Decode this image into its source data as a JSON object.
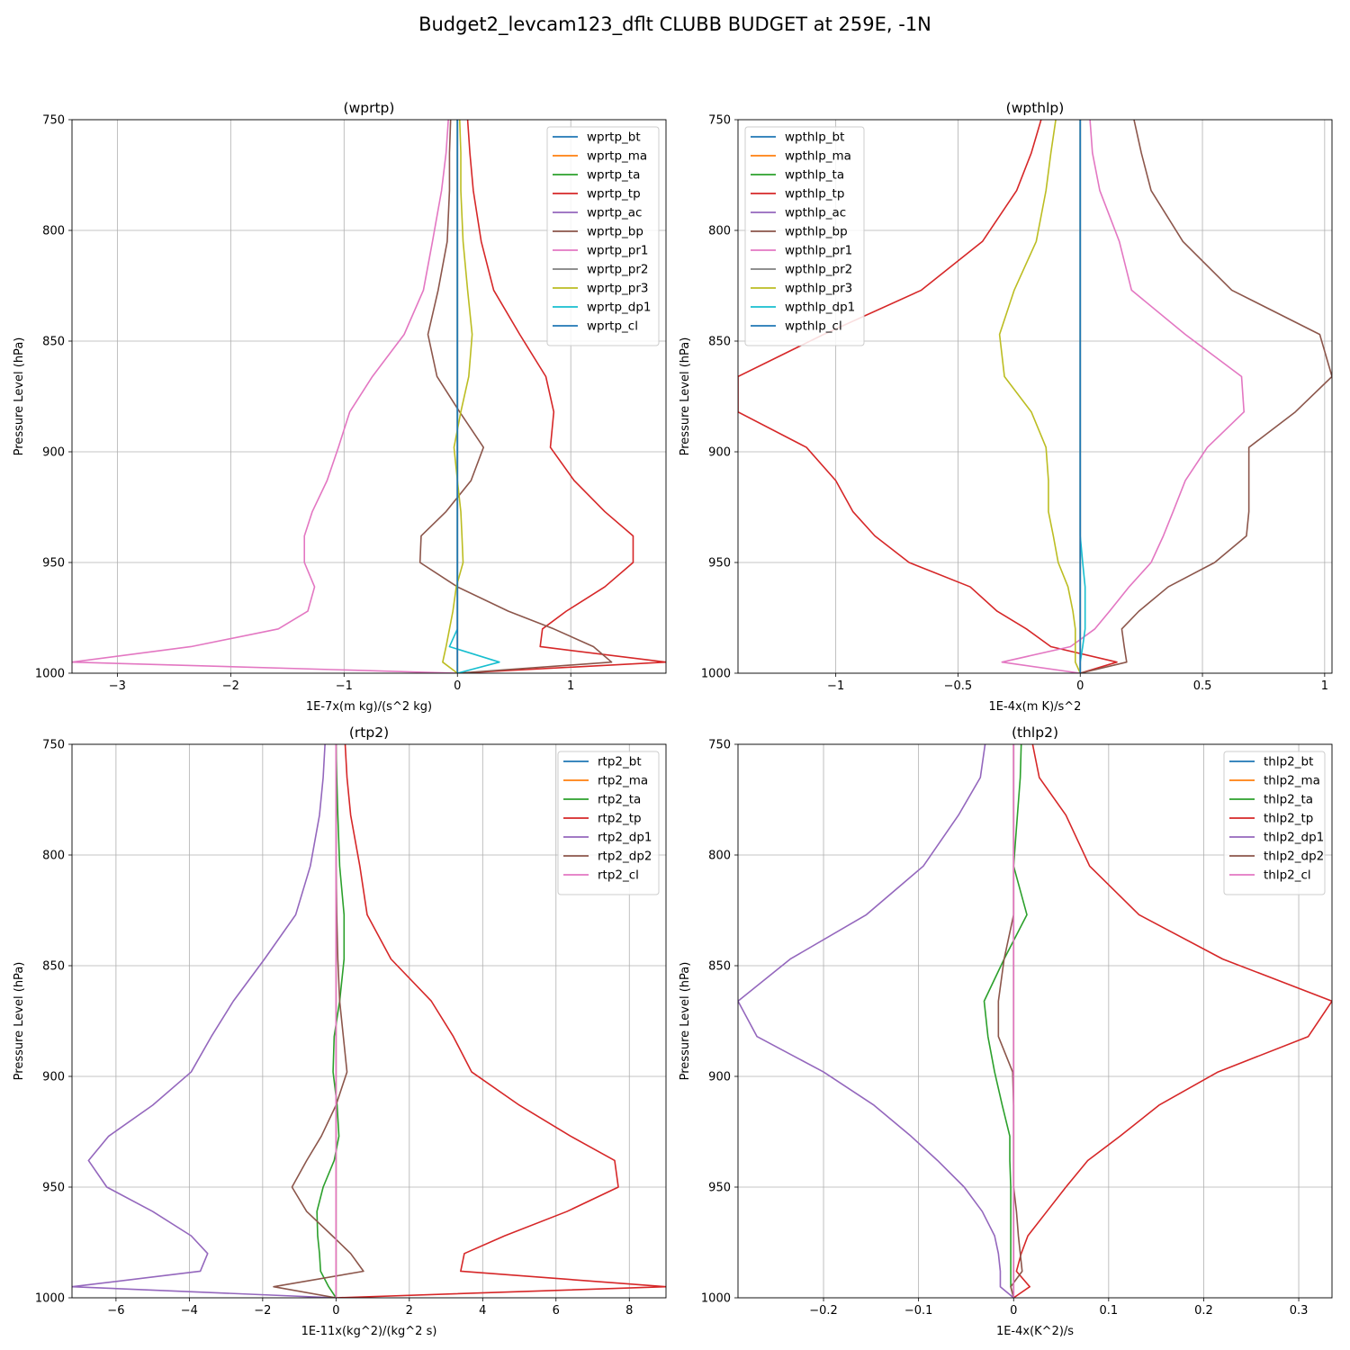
{
  "suptitle": "Budget2_levcam123_dflt CLUBB BUDGET at 259E, -1N",
  "colors": [
    "#1f77b4",
    "#ff7f0e",
    "#2ca02c",
    "#d62728",
    "#9467bd",
    "#8c564b",
    "#e377c2",
    "#7f7f7f",
    "#bcbd22",
    "#17becf",
    "#1f77b4"
  ],
  "chart_data": [
    {
      "type": "line",
      "title": "(wprtp)",
      "xlabel": "1E-7x(m kg)/(s^2 kg)",
      "ylabel": "Pressure Level (hPa)",
      "xlim": [
        -3.4,
        1.84
      ],
      "ylim": [
        1000,
        750
      ],
      "xticks": [
        -3,
        -2,
        -1,
        0,
        1
      ],
      "yticks": [
        750,
        800,
        850,
        900,
        950,
        1000
      ],
      "grid": true,
      "legend": "top-right",
      "y": [
        750,
        765,
        782,
        805,
        827,
        847,
        866,
        882,
        898,
        913,
        927,
        938,
        950,
        961,
        972,
        980,
        988,
        995,
        1000
      ],
      "series": [
        {
          "name": "wprtp_bt",
          "values": [
            0,
            0,
            0,
            0,
            0,
            0,
            0,
            0,
            0,
            0,
            0,
            0,
            0,
            0,
            0,
            0,
            0,
            0,
            0
          ]
        },
        {
          "name": "wprtp_ma",
          "values": [
            0,
            0,
            0,
            0,
            0,
            0,
            0,
            0,
            0,
            0,
            0,
            0,
            0,
            0,
            0,
            0,
            0,
            0,
            0
          ]
        },
        {
          "name": "wprtp_ta",
          "values": [
            0,
            0,
            0,
            0,
            0,
            0,
            0,
            0,
            0,
            0,
            0,
            0,
            0,
            0,
            0,
            0,
            0,
            0,
            0
          ]
        },
        {
          "name": "wprtp_tp",
          "values": [
            0.09,
            0.11,
            0.14,
            0.21,
            0.32,
            0.55,
            0.78,
            0.85,
            0.82,
            1.03,
            1.3,
            1.55,
            1.55,
            1.3,
            0.96,
            0.75,
            0.73,
            1.84,
            0
          ]
        },
        {
          "name": "wprtp_ac",
          "values": [
            0,
            0,
            0,
            0,
            0,
            0,
            0,
            0,
            0,
            0,
            0,
            0,
            0,
            0,
            0,
            0,
            0,
            0,
            0
          ]
        },
        {
          "name": "wprtp_bp",
          "values": [
            -0.06,
            -0.07,
            -0.07,
            -0.09,
            -0.17,
            -0.26,
            -0.18,
            0.02,
            0.23,
            0.12,
            -0.1,
            -0.32,
            -0.33,
            0,
            0.45,
            0.85,
            1.2,
            1.36,
            0
          ]
        },
        {
          "name": "wprtp_pr1",
          "values": [
            -0.08,
            -0.1,
            -0.14,
            -0.22,
            -0.3,
            -0.47,
            -0.75,
            -0.95,
            -1.05,
            -1.15,
            -1.28,
            -1.35,
            -1.35,
            -1.26,
            -1.32,
            -1.58,
            -2.35,
            -3.4,
            0
          ]
        },
        {
          "name": "wprtp_pr2",
          "values": [
            0,
            0,
            0,
            0,
            0,
            0,
            0,
            0,
            0,
            0,
            0,
            0,
            0,
            0,
            0,
            0,
            0,
            0,
            0
          ]
        },
        {
          "name": "wprtp_pr3",
          "values": [
            0.02,
            0.03,
            0.03,
            0.05,
            0.09,
            0.13,
            0.1,
            0.03,
            -0.03,
            0,
            0.03,
            0.04,
            0.05,
            -0.01,
            -0.04,
            -0.07,
            -0.1,
            -0.13,
            0
          ]
        },
        {
          "name": "wprtp_dp1",
          "values": [
            0,
            0,
            0,
            0,
            0,
            0,
            0,
            0,
            0,
            0,
            0,
            0,
            0,
            0,
            0,
            0,
            -0.07,
            0.37,
            0
          ]
        },
        {
          "name": "wprtp_cl",
          "values": [
            0,
            0,
            0,
            0,
            0,
            0,
            0,
            0,
            0,
            0,
            0,
            0,
            0,
            0,
            0,
            0,
            0,
            0,
            0
          ]
        }
      ]
    },
    {
      "type": "line",
      "title": "(wpthlp)",
      "xlabel": "1E-4x(m K)/s^2",
      "ylabel": "Pressure Level (hPa)",
      "xlim": [
        -1.4,
        1.03
      ],
      "ylim": [
        1000,
        750
      ],
      "xticks": [
        -1.0,
        -0.5,
        0.0,
        0.5,
        1.0
      ],
      "yticks": [
        750,
        800,
        850,
        900,
        950,
        1000
      ],
      "grid": true,
      "legend": "top-left",
      "y": [
        750,
        765,
        782,
        805,
        827,
        847,
        866,
        882,
        898,
        913,
        927,
        938,
        950,
        961,
        972,
        980,
        988,
        995,
        1000
      ],
      "series": [
        {
          "name": "wpthlp_bt",
          "values": [
            0,
            0,
            0,
            0,
            0,
            0,
            0,
            0,
            0,
            0,
            0,
            0,
            0,
            0,
            0,
            0,
            0,
            0,
            0
          ]
        },
        {
          "name": "wpthlp_ma",
          "values": [
            0,
            0,
            0,
            0,
            0,
            0,
            0,
            0,
            0,
            0,
            0,
            0,
            0,
            0,
            0,
            0,
            0,
            0,
            0
          ]
        },
        {
          "name": "wpthlp_ta",
          "values": [
            0,
            0,
            0,
            0,
            0,
            0,
            0,
            0,
            0,
            0,
            0,
            0,
            0,
            0,
            0,
            0,
            0,
            0,
            0
          ]
        },
        {
          "name": "wpthlp_tp",
          "values": [
            -0.16,
            -0.2,
            -0.26,
            -0.4,
            -0.65,
            -1.05,
            -1.4,
            -1.4,
            -1.12,
            -1.0,
            -0.93,
            -0.84,
            -0.7,
            -0.45,
            -0.34,
            -0.22,
            -0.12,
            0.15,
            0
          ]
        },
        {
          "name": "wpthlp_ac",
          "values": [
            0,
            0,
            0,
            0,
            0,
            0,
            0,
            0,
            0,
            0,
            0,
            0,
            0,
            0,
            0,
            0,
            0,
            0,
            0
          ]
        },
        {
          "name": "wpthlp_bp",
          "values": [
            0.22,
            0.25,
            0.29,
            0.42,
            0.62,
            0.98,
            1.03,
            0.88,
            0.69,
            0.69,
            0.69,
            0.68,
            0.55,
            0.36,
            0.24,
            0.17,
            0.18,
            0.19,
            0
          ]
        },
        {
          "name": "wpthlp_pr1",
          "values": [
            0.04,
            0.05,
            0.08,
            0.16,
            0.21,
            0.43,
            0.66,
            0.67,
            0.52,
            0.43,
            0.38,
            0.34,
            0.29,
            0.2,
            0.12,
            0.06,
            -0.04,
            -0.32,
            0
          ]
        },
        {
          "name": "wpthlp_pr2",
          "values": [
            0,
            0,
            0,
            0,
            0,
            0,
            0,
            0,
            0,
            0,
            0,
            0,
            0,
            0,
            0,
            0,
            0,
            0,
            0
          ]
        },
        {
          "name": "wpthlp_pr3",
          "values": [
            -0.1,
            -0.12,
            -0.14,
            -0.18,
            -0.27,
            -0.33,
            -0.31,
            -0.2,
            -0.14,
            -0.13,
            -0.13,
            -0.11,
            -0.09,
            -0.05,
            -0.03,
            -0.02,
            -0.02,
            -0.02,
            0
          ]
        },
        {
          "name": "wpthlp_dp1",
          "values": [
            0,
            0,
            0,
            0,
            0,
            0,
            0,
            0,
            0,
            0,
            0,
            0,
            0.01,
            0.02,
            0.02,
            0.02,
            0.01,
            0,
            0
          ]
        },
        {
          "name": "wpthlp_cl",
          "values": [
            0,
            0,
            0,
            0,
            0,
            0,
            0,
            0,
            0,
            0,
            0,
            0,
            0,
            0,
            0,
            0,
            0,
            0,
            0
          ]
        }
      ]
    },
    {
      "type": "line",
      "title": "(rtp2)",
      "xlabel": "1E-11x(kg^2)/(kg^2 s)",
      "ylabel": "Pressure Level (hPa)",
      "xlim": [
        -7.2,
        9.0
      ],
      "ylim": [
        1000,
        750
      ],
      "xticks": [
        -6,
        -4,
        -2,
        0,
        2,
        4,
        6,
        8
      ],
      "yticks": [
        750,
        800,
        850,
        900,
        950,
        1000
      ],
      "grid": true,
      "legend": "top-right",
      "y": [
        750,
        765,
        782,
        805,
        827,
        847,
        866,
        882,
        898,
        913,
        927,
        938,
        950,
        961,
        972,
        980,
        988,
        995,
        1000
      ],
      "series": [
        {
          "name": "rtp2_bt",
          "values": [
            0,
            0,
            0,
            0,
            0,
            0,
            0,
            0,
            0,
            0,
            0,
            0,
            0,
            0,
            0,
            0,
            0,
            0,
            0
          ]
        },
        {
          "name": "rtp2_ma",
          "values": [
            0,
            0,
            0,
            0,
            0,
            0,
            0,
            0,
            0,
            0,
            0,
            0,
            0,
            0,
            0,
            0,
            0,
            0,
            0
          ]
        },
        {
          "name": "rtp2_ta",
          "values": [
            0,
            0.02,
            0.05,
            0.1,
            0.22,
            0.22,
            0.1,
            -0.05,
            -0.08,
            0.03,
            0.08,
            -0.05,
            -0.35,
            -0.52,
            -0.5,
            -0.45,
            -0.42,
            -0.2,
            0
          ]
        },
        {
          "name": "rtp2_tp",
          "values": [
            0.25,
            0.3,
            0.4,
            0.65,
            0.85,
            1.5,
            2.6,
            3.2,
            3.7,
            5.0,
            6.4,
            7.6,
            7.7,
            6.3,
            4.6,
            3.5,
            3.4,
            9.0,
            0
          ]
        },
        {
          "name": "rtp2_dp1",
          "values": [
            -0.3,
            -0.35,
            -0.45,
            -0.7,
            -1.1,
            -1.95,
            -2.8,
            -3.4,
            -3.95,
            -5.0,
            -6.2,
            -6.75,
            -6.25,
            -5.0,
            -3.95,
            -3.5,
            -3.7,
            -7.2,
            0
          ]
        },
        {
          "name": "rtp2_dp2",
          "values": [
            0,
            0,
            0,
            0,
            0.02,
            0.05,
            0.1,
            0.2,
            0.3,
            0,
            -0.4,
            -0.8,
            -1.2,
            -0.8,
            -0.1,
            0.4,
            0.75,
            -1.7,
            0
          ]
        },
        {
          "name": "rtp2_cl",
          "values": [
            0,
            0,
            0,
            0,
            0,
            0,
            0,
            0,
            0,
            0,
            0,
            0,
            0,
            0,
            0,
            0,
            0,
            0,
            0
          ]
        }
      ]
    },
    {
      "type": "line",
      "title": "(thlp2)",
      "xlabel": "1E-4x(K^2)/s",
      "ylabel": "Pressure Level (hPa)",
      "xlim": [
        -0.29,
        0.335
      ],
      "ylim": [
        1000,
        750
      ],
      "xticks": [
        -0.2,
        -0.1,
        0.0,
        0.1,
        0.2,
        0.3
      ],
      "yticks": [
        750,
        800,
        850,
        900,
        950,
        1000
      ],
      "grid": true,
      "legend": "top-right",
      "y": [
        750,
        765,
        782,
        805,
        827,
        847,
        866,
        882,
        898,
        913,
        927,
        938,
        950,
        961,
        972,
        980,
        988,
        995,
        1000
      ],
      "series": [
        {
          "name": "thlp2_bt",
          "values": [
            0,
            0,
            0,
            0,
            0,
            0,
            0,
            0,
            0,
            0,
            0,
            0,
            0,
            0,
            0,
            0,
            0,
            0,
            0
          ]
        },
        {
          "name": "thlp2_ma",
          "values": [
            0,
            0,
            0,
            0,
            0,
            0,
            0,
            0,
            0,
            0,
            0,
            0,
            0,
            0,
            0,
            0,
            0,
            0,
            0
          ]
        },
        {
          "name": "thlp2_ta",
          "values": [
            0.008,
            0.007,
            0.004,
            0.0,
            0.014,
            -0.01,
            -0.031,
            -0.027,
            -0.02,
            -0.012,
            -0.004,
            -0.004,
            -0.003,
            -0.003,
            -0.003,
            -0.003,
            -0.003,
            -0.003,
            0
          ]
        },
        {
          "name": "thlp2_tp",
          "values": [
            0.02,
            0.027,
            0.055,
            0.08,
            0.132,
            0.22,
            0.335,
            0.31,
            0.215,
            0.153,
            0.112,
            0.078,
            0.055,
            0.035,
            0.015,
            0.008,
            0.003,
            0.017,
            0
          ]
        },
        {
          "name": "thlp2_dp1",
          "values": [
            -0.03,
            -0.035,
            -0.058,
            -0.095,
            -0.155,
            -0.235,
            -0.29,
            -0.27,
            -0.2,
            -0.147,
            -0.108,
            -0.08,
            -0.052,
            -0.033,
            -0.02,
            -0.016,
            -0.014,
            -0.014,
            0
          ]
        },
        {
          "name": "thlp2_dp2",
          "values": [
            0,
            0,
            0,
            0,
            0,
            -0.01,
            -0.016,
            -0.016,
            -0.001,
            0,
            0,
            0,
            0,
            0.003,
            0.005,
            0.007,
            0.009,
            -0.003,
            0
          ]
        },
        {
          "name": "thlp2_cl",
          "values": [
            0,
            0,
            0,
            0,
            0,
            0,
            0,
            0,
            0,
            0,
            0,
            0,
            0,
            0,
            0,
            0,
            0,
            0,
            0
          ]
        }
      ]
    }
  ]
}
